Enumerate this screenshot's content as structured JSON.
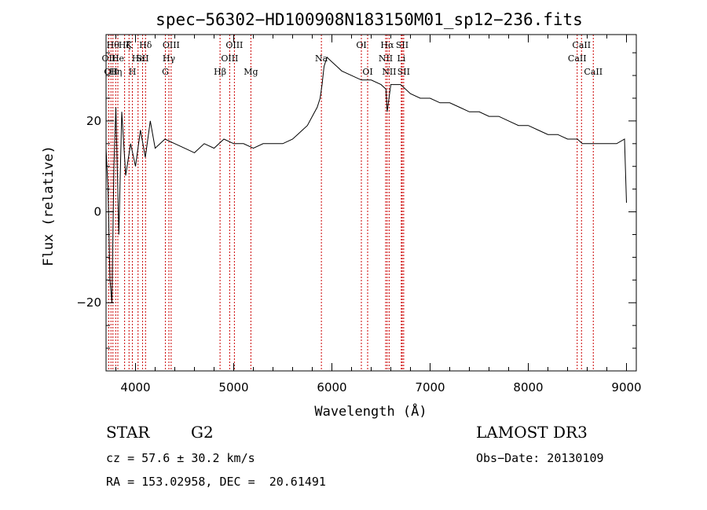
{
  "chart_data": {
    "type": "line",
    "title": "spec−56302−HD100908N183150M01_sp12−236.fits",
    "xlabel": "Wavelength (Å)",
    "ylabel": "Flux (relative)",
    "xlim": [
      3700,
      9100
    ],
    "ylim": [
      -35,
      39
    ],
    "x_ticks": [
      4000,
      5000,
      6000,
      7000,
      8000,
      9000
    ],
    "y_ticks": [
      -20,
      0,
      20
    ],
    "grid": false,
    "line_color": "#000000",
    "marker_color": "#cc0000",
    "series": [
      {
        "x": [
          3700,
          3720,
          3740,
          3760,
          3780,
          3800,
          3830,
          3860,
          3900,
          3950,
          4000,
          4050,
          4100,
          4150,
          4200,
          4300,
          4400,
          4500,
          4600,
          4700,
          4800,
          4900,
          5000,
          5100,
          5200,
          5300,
          5400,
          5500,
          5600,
          5700,
          5750,
          5800,
          5850,
          5880,
          5900,
          5920,
          5950,
          6000,
          6050,
          6100,
          6200,
          6300,
          6400,
          6500,
          6550,
          6563,
          6600,
          6700,
          6800,
          6900,
          7000,
          7100,
          7200,
          7300,
          7400,
          7500,
          7600,
          7700,
          7800,
          7900,
          8000,
          8100,
          8200,
          8300,
          8400,
          8500,
          8550,
          8600,
          8700,
          8800,
          8900,
          8980,
          9000
        ],
        "y": [
          14,
          5,
          -15,
          -20,
          10,
          23,
          -5,
          22,
          8,
          15,
          10,
          18,
          12,
          20,
          14,
          16,
          15,
          14,
          13,
          15,
          14,
          16,
          15,
          15,
          14,
          15,
          15,
          15,
          16,
          18,
          19,
          21,
          23,
          25,
          28,
          32,
          34,
          33,
          32,
          31,
          30,
          29,
          29,
          28,
          27,
          22,
          28,
          28,
          26,
          25,
          25,
          24,
          24,
          23,
          22,
          22,
          21,
          21,
          20,
          19,
          19,
          18,
          17,
          17,
          16,
          16,
          15,
          15,
          15,
          15,
          15,
          16,
          2
        ]
      }
    ],
    "lines": [
      {
        "x": 3727,
        "label": "OII",
        "row": 1
      },
      {
        "x": 3750,
        "label": "OII",
        "row": 2
      },
      {
        "x": 3770,
        "label": "Hθ",
        "row": 0
      },
      {
        "x": 3798,
        "label": "Hη",
        "row": 2
      },
      {
        "x": 3820,
        "label": "He",
        "row": 1
      },
      {
        "x": 3889,
        "label": "Hζ",
        "row": 0
      },
      {
        "x": 3934,
        "label": "K",
        "row": 0
      },
      {
        "x": 3968,
        "label": "H",
        "row": 2
      },
      {
        "x": 4026,
        "label": "He",
        "row": 1
      },
      {
        "x": 4072,
        "label": "SII",
        "row": 1
      },
      {
        "x": 4102,
        "label": "Hδ",
        "row": 0
      },
      {
        "x": 4304,
        "label": "G",
        "row": 2
      },
      {
        "x": 4340,
        "label": "Hγ",
        "row": 1
      },
      {
        "x": 4363,
        "label": "OIII",
        "row": 0
      },
      {
        "x": 4861,
        "label": "Hβ",
        "row": 2
      },
      {
        "x": 4959,
        "label": "OIII",
        "row": 1
      },
      {
        "x": 5007,
        "label": "OIII",
        "row": 0
      },
      {
        "x": 5175,
        "label": "Mg",
        "row": 2
      },
      {
        "x": 5893,
        "label": "Na",
        "row": 1
      },
      {
        "x": 6300,
        "label": "OI",
        "row": 0
      },
      {
        "x": 6364,
        "label": "OI",
        "row": 2
      },
      {
        "x": 6548,
        "label": "NII",
        "row": 1
      },
      {
        "x": 6563,
        "label": "Hα",
        "row": 0
      },
      {
        "x": 6583,
        "label": "NII",
        "row": 2
      },
      {
        "x": 6707,
        "label": "Li",
        "row": 1
      },
      {
        "x": 6716,
        "label": "SII",
        "row": 0
      },
      {
        "x": 6731,
        "label": "SII",
        "row": 2
      },
      {
        "x": 8498,
        "label": "CaII",
        "row": 1
      },
      {
        "x": 8542,
        "label": "CaII",
        "row": 0
      },
      {
        "x": 8662,
        "label": "CaII",
        "row": 2
      }
    ]
  },
  "info": {
    "object_class": "STAR",
    "subclass": "G2",
    "survey": "LAMOST DR3",
    "cz": "cz = 57.6 ± 30.2 km/s",
    "obs_date": "Obs−Date: 20130109",
    "coords": "RA = 153.02958, DEC =  20.61491"
  }
}
